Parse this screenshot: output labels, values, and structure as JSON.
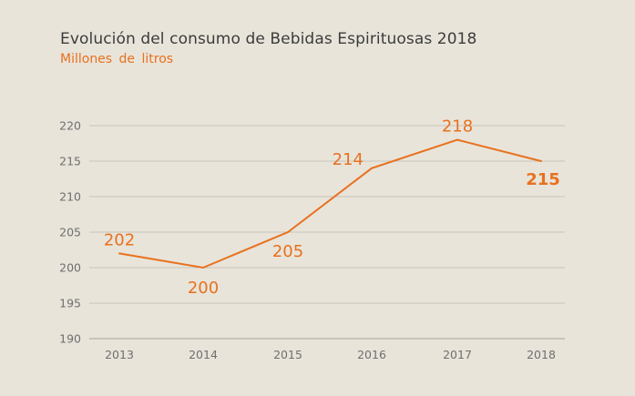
{
  "header": {
    "title": "Evolución del consumo de Bebidas Espirituosas 2018",
    "subtitle": "Millones de litros"
  },
  "colors": {
    "background": "#e8e4da",
    "line": "#e8711e",
    "grid": "#c9c5ba",
    "text": "#3c3c3c"
  },
  "chart_data": {
    "type": "line",
    "title": "Evolución del consumo de Bebidas Espirituosas 2018",
    "subtitle": "Millones de litros",
    "categories": [
      "2013",
      "2014",
      "2015",
      "2016",
      "2017",
      "2018"
    ],
    "series": [
      {
        "values": [
          202,
          200,
          205,
          214,
          218,
          215
        ]
      }
    ],
    "data_labels": [
      "202",
      "200",
      "205",
      "214",
      "218",
      "215"
    ],
    "ylim": [
      190,
      220
    ],
    "yticks": [
      190,
      195,
      200,
      205,
      210,
      215,
      220
    ],
    "grid": true,
    "legend": "none"
  }
}
